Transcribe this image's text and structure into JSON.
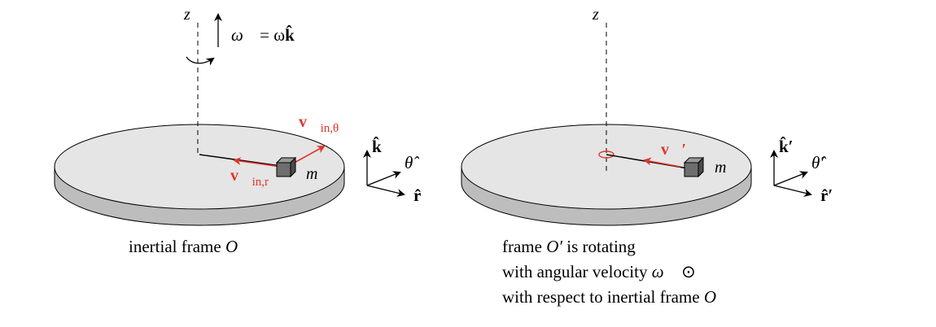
{
  "left": {
    "axis_label": "z",
    "omega_label": "ω⃗ = ωk̂",
    "omega_symbol": "ω⃗",
    "omega_eq": "= ω",
    "omega_k": "k̂",
    "mass_label": "m",
    "v_theta": {
      "base": "v⃗",
      "sub": "in,θ"
    },
    "v_r": {
      "base": "v⃗",
      "sub": "in,r"
    },
    "triad": {
      "k": "k̂",
      "theta": "θ̂",
      "r": "r̂"
    },
    "caption_prefix": "inertial frame ",
    "caption_frame": "O"
  },
  "right": {
    "axis_label": "z",
    "mass_label": "m",
    "v_prime": "v⃗′",
    "triad": {
      "k": "k̂′",
      "theta": "θ̂′",
      "r": "r̂′"
    },
    "caption_line1_prefix": "frame ",
    "caption_line1_frame": "O′",
    "caption_line1_suffix": " is rotating",
    "caption_line2_prefix": "with angular velocity ",
    "caption_line2_omega": "ω⃗",
    "caption_line2_suffix": " ⊙",
    "caption_line3_prefix": "with respect to inertial frame ",
    "caption_line3_frame": "O"
  },
  "colors": {
    "accent": "#e0352b",
    "disk_top": "#e5e5e5",
    "disk_side": "#bdbdbd",
    "cube": "#6e6e6e"
  }
}
